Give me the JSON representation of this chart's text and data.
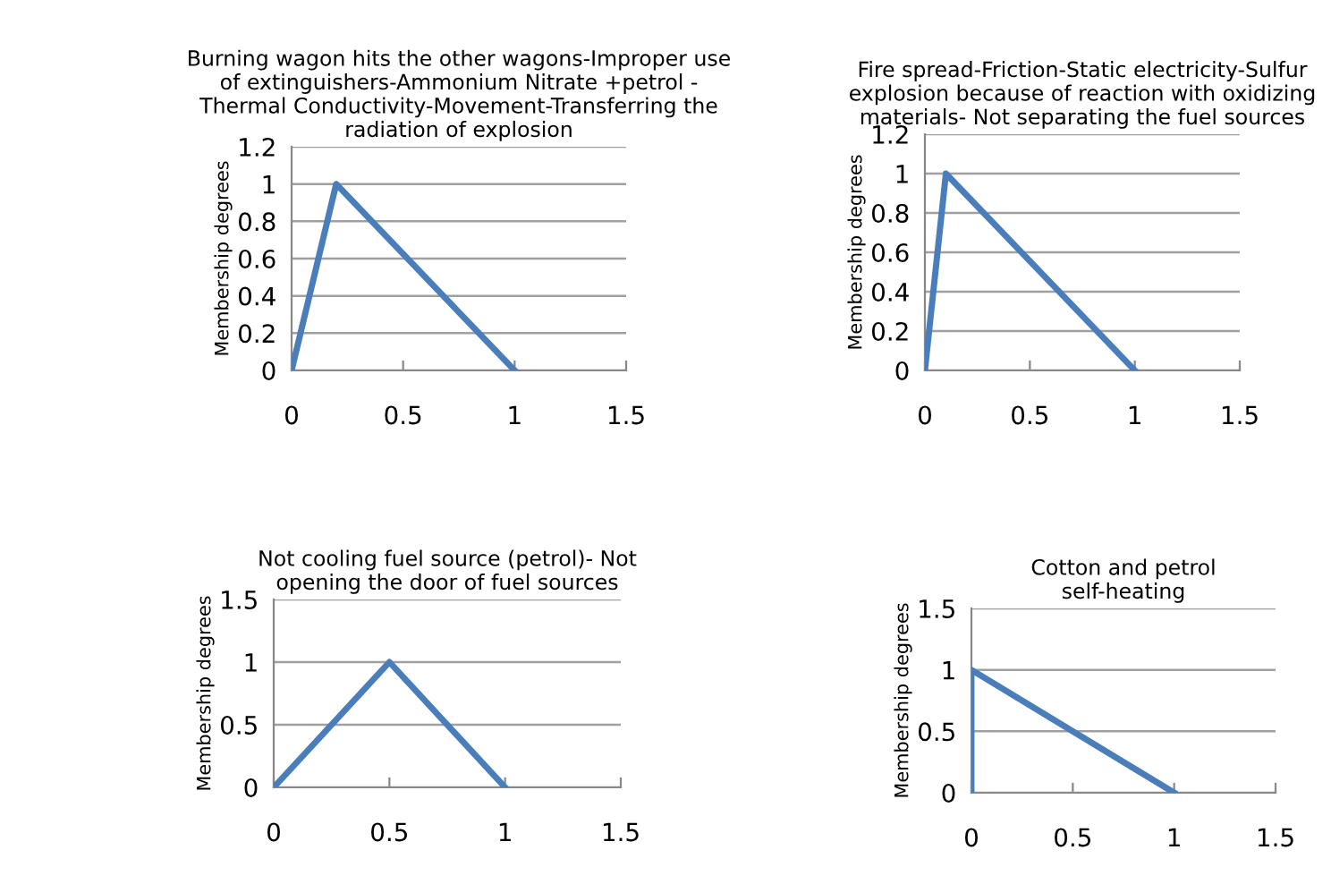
{
  "chart_data": [
    {
      "type": "line",
      "title": "Burning wagon hits the other wagons-Improper use\nof extinguishers-Ammonium Nitrate +petrol -\nThermal Conductivity-Movement-Transferring the\nradiation of explosion",
      "ylabel": "Membership degrees",
      "x": [
        0,
        0.2,
        1
      ],
      "values": [
        0,
        1,
        0
      ],
      "color": "#4a7ebb",
      "xlim": [
        0,
        1.5
      ],
      "xticks": [
        0,
        0.5,
        1,
        1.5
      ],
      "ylim": [
        0,
        1.2
      ],
      "yticks": [
        0,
        0.2,
        0.4,
        0.6,
        0.8,
        1,
        1.2
      ],
      "grid": "y",
      "legend": false,
      "marker": "none",
      "line_style": "solid"
    },
    {
      "type": "line",
      "title": "Fire spread-Friction-Static electricity-Sulfur\nexplosion because of reaction with oxidizing\nmaterials- Not separating the fuel sources",
      "ylabel": "Membership degrees",
      "x": [
        0,
        0.1,
        1
      ],
      "values": [
        0,
        1,
        0
      ],
      "color": "#4a7ebb",
      "xlim": [
        0,
        1.5
      ],
      "xticks": [
        0,
        0.5,
        1,
        1.5
      ],
      "ylim": [
        0,
        1.2
      ],
      "yticks": [
        0,
        0.2,
        0.4,
        0.6,
        0.8,
        1,
        1.2
      ],
      "grid": "y",
      "legend": false,
      "marker": "none",
      "line_style": "solid"
    },
    {
      "type": "line",
      "title": "Not cooling fuel source (petrol)- Not\nopening the door of fuel sources",
      "ylabel": "Membership degrees",
      "x": [
        0,
        0.5,
        1
      ],
      "values": [
        0,
        1,
        0
      ],
      "color": "#4a7ebb",
      "xlim": [
        0,
        1.5
      ],
      "xticks": [
        0,
        0.5,
        1,
        1.5
      ],
      "ylim": [
        0,
        1.5
      ],
      "yticks": [
        0,
        0.5,
        1,
        1.5
      ],
      "grid": "y",
      "legend": false,
      "marker": "none",
      "line_style": "solid"
    },
    {
      "type": "line",
      "title": "Cotton and petrol\nself-heating",
      "ylabel": "Membership degrees",
      "x": [
        0,
        0,
        1
      ],
      "values": [
        0,
        1,
        0
      ],
      "color": "#4a7ebb",
      "xlim": [
        0,
        1.5
      ],
      "xticks": [
        0,
        0.5,
        1,
        1.5
      ],
      "ylim": [
        0,
        1.5
      ],
      "yticks": [
        0,
        0.5,
        1,
        1.5
      ],
      "grid": "y",
      "legend": false,
      "marker": "none",
      "line_style": "solid"
    }
  ]
}
